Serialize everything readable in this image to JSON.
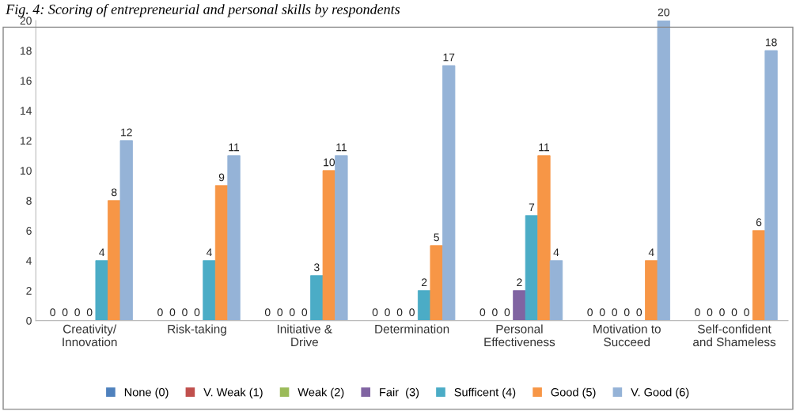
{
  "chart_data": {
    "type": "bar",
    "title": "Fig. 4: Scoring of entrepreneurial and personal skills by respondents",
    "categories": [
      "Creativity/\nInnovation",
      "Risk-taking",
      "Initiative &\nDrive",
      "Determination",
      "Personal\nEffectiveness",
      "Motivation to\nSucceed",
      "Self-confident\nand Shameless"
    ],
    "series": [
      {
        "name": "None (0)",
        "color": "#4f81bd",
        "values": [
          0,
          0,
          0,
          0,
          0,
          0,
          0
        ]
      },
      {
        "name": "V. Weak (1)",
        "color": "#c0504d",
        "values": [
          0,
          0,
          0,
          0,
          0,
          0,
          0
        ]
      },
      {
        "name": "Weak (2)",
        "color": "#9bbb59",
        "values": [
          0,
          0,
          0,
          0,
          0,
          0,
          0
        ]
      },
      {
        "name": "Fair  (3)",
        "color": "#8064a2",
        "values": [
          0,
          0,
          0,
          0,
          2,
          0,
          0
        ]
      },
      {
        "name": "Sufficent (4)",
        "color": "#4bacc6",
        "values": [
          4,
          4,
          3,
          2,
          7,
          0,
          0
        ]
      },
      {
        "name": "Good (5)",
        "color": "#f79646",
        "values": [
          8,
          9,
          10,
          5,
          11,
          4,
          6
        ]
      },
      {
        "name": "V. Good (6)",
        "color": "#95b3d7",
        "values": [
          12,
          11,
          11,
          17,
          4,
          20,
          18
        ]
      }
    ],
    "ylim": [
      0,
      20
    ],
    "yticks": [
      0,
      2,
      4,
      6,
      8,
      10,
      12,
      14,
      16,
      18,
      20
    ],
    "grid": false,
    "legend": "bottom",
    "data_labels": true
  }
}
